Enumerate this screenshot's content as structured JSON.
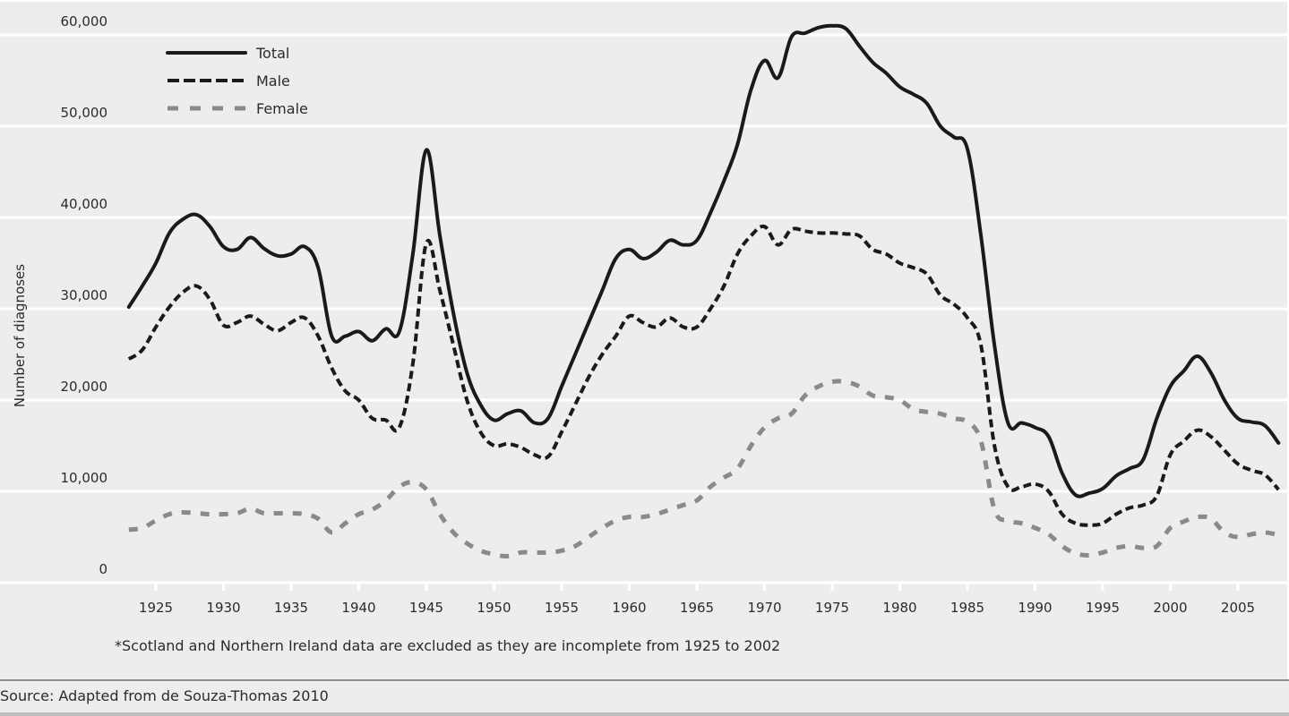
{
  "chart_data": {
    "type": "line",
    "title": "",
    "xlabel": "",
    "ylabel": "Number of diagnoses",
    "xlim": [
      1923,
      2008
    ],
    "ylim": [
      0,
      60000
    ],
    "grid": true,
    "legend_position": "top-left",
    "x_ticks": [
      1925,
      1930,
      1935,
      1940,
      1945,
      1950,
      1955,
      1960,
      1965,
      1970,
      1975,
      1980,
      1985,
      1990,
      1995,
      2000,
      2005
    ],
    "x_tick_labels": [
      "1925",
      "1930",
      "1935",
      "1940",
      "1945",
      "1950",
      "1955",
      "1960",
      "1965",
      "1970",
      "1975",
      "1980",
      "1985",
      "1990",
      "1995",
      "2000",
      "2005"
    ],
    "y_ticks": [
      0,
      10000,
      20000,
      30000,
      40000,
      50000,
      60000
    ],
    "y_tick_labels": [
      "0",
      "10,000",
      "20,000",
      "30,000",
      "40,000",
      "50,000",
      "60,000"
    ],
    "x": [
      1923,
      1924,
      1925,
      1926,
      1927,
      1928,
      1929,
      1930,
      1931,
      1932,
      1933,
      1934,
      1935,
      1936,
      1937,
      1938,
      1939,
      1940,
      1941,
      1942,
      1943,
      1944,
      1945,
      1946,
      1947,
      1948,
      1949,
      1950,
      1951,
      1952,
      1953,
      1954,
      1955,
      1956,
      1957,
      1958,
      1959,
      1960,
      1961,
      1962,
      1963,
      1964,
      1965,
      1966,
      1967,
      1968,
      1969,
      1970,
      1971,
      1972,
      1973,
      1974,
      1975,
      1976,
      1977,
      1978,
      1979,
      1980,
      1981,
      1982,
      1983,
      1984,
      1985,
      1986,
      1987,
      1988,
      1989,
      1990,
      1991,
      1992,
      1993,
      1994,
      1995,
      1996,
      1997,
      1998,
      1999,
      2000,
      2001,
      2002,
      2003,
      2004,
      2005,
      2006,
      2007,
      2008
    ],
    "series": [
      {
        "name": "Total",
        "style": "solid",
        "color": "#1a1a1a",
        "values": [
          30200,
          32500,
          35000,
          38300,
          39800,
          40300,
          39000,
          36800,
          36500,
          37800,
          36600,
          35800,
          36000,
          36800,
          34500,
          27000,
          27000,
          27500,
          26500,
          27800,
          27500,
          36000,
          47400,
          38000,
          29500,
          23000,
          19500,
          17800,
          18500,
          18800,
          17500,
          18000,
          21500,
          25000,
          28500,
          32000,
          35500,
          36500,
          35500,
          36200,
          37500,
          37000,
          37500,
          40500,
          44000,
          48000,
          54000,
          57200,
          55300,
          59800,
          60200,
          60800,
          61000,
          60700,
          58800,
          57000,
          55800,
          54300,
          53500,
          52500,
          50000,
          48800,
          47500,
          38000,
          26000,
          17500,
          17500,
          17000,
          16000,
          12000,
          9600,
          9800,
          10300,
          11700,
          12500,
          13500,
          18000,
          21500,
          23200,
          24800,
          23000,
          20000,
          18000,
          17600,
          17200,
          15300
        ]
      },
      {
        "name": "Male",
        "style": "dashed",
        "color": "#1a1a1a",
        "values": [
          24500,
          25500,
          28000,
          30200,
          31800,
          32500,
          31000,
          28200,
          28500,
          29200,
          28300,
          27600,
          28500,
          29000,
          27000,
          23500,
          21000,
          20000,
          18000,
          17800,
          17000,
          24000,
          37200,
          32000,
          26000,
          20000,
          16500,
          15000,
          15200,
          14800,
          14000,
          13800,
          16500,
          19500,
          22500,
          25000,
          27000,
          29200,
          28500,
          28000,
          29000,
          28000,
          28000,
          30000,
          32500,
          36000,
          38000,
          39000,
          37000,
          38700,
          38500,
          38300,
          38300,
          38200,
          38000,
          36500,
          36000,
          35000,
          34500,
          33800,
          31500,
          30500,
          29000,
          26000,
          15000,
          10500,
          10500,
          10800,
          10000,
          7500,
          6500,
          6300,
          6500,
          7500,
          8200,
          8500,
          9500,
          14000,
          15500,
          16700,
          16000,
          14500,
          13000,
          12300,
          11800,
          10200
        ]
      },
      {
        "name": "Female",
        "style": "dashed",
        "color": "#8a8a8a",
        "values": [
          5800,
          6000,
          6800,
          7500,
          7700,
          7600,
          7500,
          7500,
          7600,
          8100,
          7600,
          7600,
          7600,
          7500,
          7000,
          5500,
          6500,
          7500,
          8000,
          9000,
          10500,
          11000,
          10200,
          7500,
          5500,
          4300,
          3500,
          3100,
          2900,
          3300,
          3300,
          3300,
          3500,
          4000,
          5000,
          6000,
          6800,
          7200,
          7200,
          7500,
          8000,
          8500,
          9000,
          10500,
          11500,
          12500,
          15000,
          17000,
          18000,
          18500,
          20500,
          21500,
          22000,
          22000,
          21500,
          20500,
          20300,
          20000,
          19000,
          18700,
          18500,
          18000,
          17600,
          15500,
          8000,
          6800,
          6500,
          6000,
          5300,
          4000,
          3200,
          3000,
          3300,
          3800,
          4000,
          3800,
          4000,
          6000,
          6700,
          7200,
          7000,
          5500,
          5000,
          5300,
          5500,
          5200
        ]
      }
    ]
  },
  "footnote": "*Scotland and Northern Ireland data are excluded as they are incomplete from 1925 to 2002",
  "source": "Source: Adapted from de Souza-Thomas 2010",
  "colors": {
    "background": "#ecedec",
    "grid": "#ffffff",
    "line_dark": "#1a1a1a",
    "line_light": "#8a8a8a"
  }
}
